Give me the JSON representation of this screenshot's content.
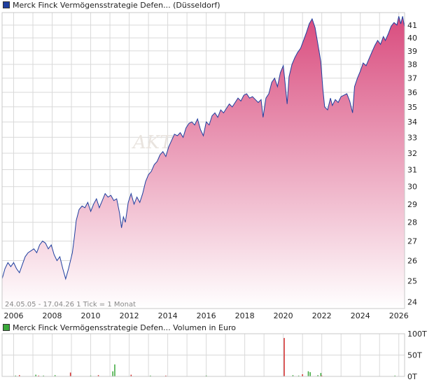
{
  "legend_price": {
    "label": "Merck Finck Vermögensstrategie Defen... (Düsseldorf)",
    "color": "#1f3f9f"
  },
  "legend_volume": {
    "label": "Merck Finck Vermögensstrategie Defen... Volumen in Euro",
    "color": "#3aa83a"
  },
  "range_label": "24.05.05 - 17.04.26   1 Tick = 1 Monat",
  "watermark": "AKT",
  "colors": {
    "line": "#1f3f9f",
    "fill_top": "#d94c7e",
    "fill_bottom": "#ffffff",
    "grid": "#d9d9d9",
    "vol_up": "#3aa83a",
    "vol_down": "#d42b2b"
  },
  "chart_data": [
    {
      "type": "area",
      "title": "Merck Finck Vermögensstrategie Defen... (Düsseldorf)",
      "x_ticks": [
        "2006",
        "2008",
        "2010",
        "2012",
        "2014",
        "2016",
        "2018",
        "2020",
        "2022",
        "2024",
        "2026"
      ],
      "y_ticks": [
        24,
        25,
        26,
        27,
        28,
        29,
        30,
        31,
        32,
        33,
        34,
        35,
        36,
        37,
        38,
        39,
        40,
        41
      ],
      "y_scale": "log",
      "ylim": [
        23.7,
        42.0
      ],
      "xlim": [
        2005.4,
        2026.3
      ],
      "grid": true,
      "series": [
        {
          "name": "Merck Finck Vermögensstrategie Defen...",
          "x": [
            2005.4,
            2005.55,
            2005.7,
            2005.85,
            2006.0,
            2006.15,
            2006.3,
            2006.45,
            2006.6,
            2006.75,
            2006.9,
            2007.05,
            2007.2,
            2007.35,
            2007.5,
            2007.65,
            2007.8,
            2007.95,
            2008.1,
            2008.25,
            2008.4,
            2008.55,
            2008.7,
            2008.85,
            2008.95,
            2009.05,
            2009.15,
            2009.25,
            2009.4,
            2009.55,
            2009.7,
            2009.85,
            2010.0,
            2010.15,
            2010.3,
            2010.45,
            2010.6,
            2010.75,
            2010.9,
            2011.05,
            2011.2,
            2011.35,
            2011.5,
            2011.6,
            2011.7,
            2011.8,
            2011.95,
            2012.1,
            2012.25,
            2012.4,
            2012.55,
            2012.7,
            2012.85,
            2013.0,
            2013.15,
            2013.3,
            2013.45,
            2013.6,
            2013.75,
            2013.9,
            2014.05,
            2014.2,
            2014.35,
            2014.5,
            2014.65,
            2014.8,
            2014.95,
            2015.1,
            2015.25,
            2015.4,
            2015.55,
            2015.7,
            2015.85,
            2016.0,
            2016.15,
            2016.3,
            2016.45,
            2016.6,
            2016.75,
            2016.9,
            2017.05,
            2017.2,
            2017.35,
            2017.5,
            2017.65,
            2017.8,
            2017.95,
            2018.1,
            2018.25,
            2018.4,
            2018.55,
            2018.7,
            2018.85,
            2018.95,
            2019.1,
            2019.25,
            2019.4,
            2019.55,
            2019.7,
            2019.85,
            2020.0,
            2020.1,
            2020.2,
            2020.3,
            2020.45,
            2020.6,
            2020.75,
            2020.9,
            2021.05,
            2021.2,
            2021.35,
            2021.5,
            2021.65,
            2021.8,
            2021.95,
            2022.05,
            2022.15,
            2022.3,
            2022.45,
            2022.55,
            2022.7,
            2022.85,
            2023.0,
            2023.15,
            2023.3,
            2023.45,
            2023.6,
            2023.7,
            2023.85,
            2024.0,
            2024.15,
            2024.3,
            2024.45,
            2024.6,
            2024.75,
            2024.9,
            2025.05,
            2025.2,
            2025.3,
            2025.45,
            2025.6,
            2025.75,
            2025.9,
            2026.0,
            2026.1,
            2026.2,
            2026.29
          ],
          "values": [
            25.1,
            25.6,
            25.9,
            25.7,
            25.9,
            25.6,
            25.4,
            25.8,
            26.2,
            26.4,
            26.5,
            26.6,
            26.4,
            26.8,
            27.0,
            26.9,
            26.6,
            26.8,
            26.3,
            26.0,
            26.2,
            25.6,
            25.1,
            25.6,
            26.0,
            26.4,
            27.2,
            28.1,
            28.7,
            28.9,
            28.8,
            29.1,
            28.6,
            29.0,
            29.3,
            28.8,
            29.2,
            29.6,
            29.4,
            29.5,
            29.2,
            29.3,
            28.5,
            27.7,
            28.3,
            28.0,
            29.1,
            29.6,
            29.0,
            29.4,
            29.1,
            29.6,
            30.3,
            30.7,
            30.9,
            31.3,
            31.5,
            31.9,
            32.1,
            31.8,
            32.4,
            32.8,
            33.2,
            33.1,
            33.3,
            33.0,
            33.6,
            33.9,
            34.0,
            33.8,
            34.2,
            33.5,
            33.1,
            34.0,
            33.8,
            34.4,
            34.6,
            34.3,
            34.8,
            34.6,
            34.9,
            35.2,
            35.0,
            35.3,
            35.6,
            35.4,
            35.8,
            35.9,
            35.6,
            35.7,
            35.5,
            35.3,
            35.5,
            34.3,
            35.6,
            35.9,
            36.7,
            37.0,
            36.4,
            37.4,
            37.9,
            36.6,
            35.2,
            37.1,
            38.0,
            38.5,
            38.9,
            39.2,
            39.8,
            40.4,
            41.1,
            41.5,
            40.8,
            39.5,
            38.2,
            36.3,
            35.0,
            34.8,
            35.6,
            35.1,
            35.5,
            35.3,
            35.7,
            35.8,
            35.9,
            35.4,
            34.6,
            36.4,
            37.0,
            37.5,
            38.1,
            37.9,
            38.4,
            38.9,
            39.4,
            39.8,
            39.5,
            40.1,
            39.8,
            40.3,
            40.9,
            41.2,
            41.0,
            41.7,
            41.1,
            41.7,
            40.9
          ]
        }
      ]
    },
    {
      "type": "bar",
      "title": "Merck Finck Vermögensstrategie Defen... Volumen in Euro",
      "ylabel": "Volumen in Euro",
      "y_ticks": [
        "0T",
        "50T",
        "100T"
      ],
      "ylim": [
        0,
        100
      ],
      "xlim": [
        2005.4,
        2026.3
      ],
      "x": [
        2006.1,
        2006.3,
        2007.15,
        2007.3,
        2007.55,
        2008.15,
        2008.95,
        2010.0,
        2010.4,
        2011.15,
        2011.25,
        2012.1,
        2013.1,
        2013.9,
        2016.0,
        2020.05,
        2020.5,
        2020.8,
        2021.0,
        2021.3,
        2021.4,
        2021.8,
        2021.95,
        2022.0,
        2025.8
      ],
      "values": [
        2,
        3,
        4,
        2,
        2,
        3,
        9,
        2,
        3,
        12,
        28,
        4,
        2,
        2,
        2,
        90,
        3,
        2,
        5,
        12,
        10,
        3,
        8,
        2,
        2
      ],
      "colors": [
        "up",
        "down",
        "up",
        "down",
        "up",
        "up",
        "down",
        "up",
        "down",
        "up",
        "up",
        "down",
        "up",
        "down",
        "up",
        "down",
        "up",
        "up",
        "down",
        "up",
        "up",
        "up",
        "up",
        "down",
        "up"
      ]
    }
  ]
}
